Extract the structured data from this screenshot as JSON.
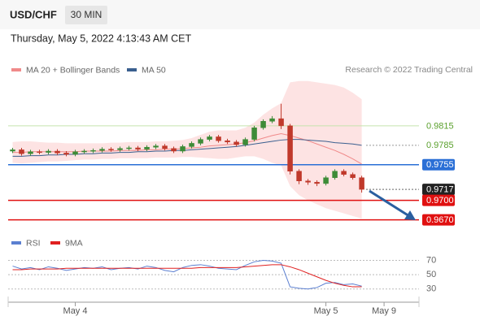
{
  "chart_data": {
    "type": "candlestick",
    "title": "USD/CHF",
    "timeframe": "30 MIN",
    "subtitle": "Thursday, May 5, 2022 4:13:43 AM CET",
    "source": "Research © 2022 Trading Central",
    "up_color": "#3d8b37",
    "down_color": "#c0392b",
    "open": [
      0.9776,
      0.9778,
      0.9772,
      0.9775,
      0.9774,
      0.9776,
      0.9773,
      0.9771,
      0.9775,
      0.9776,
      0.9777,
      0.9779,
      0.9778,
      0.978,
      0.9781,
      0.9779,
      0.9782,
      0.9784,
      0.978,
      0.9776,
      0.9783,
      0.9788,
      0.9794,
      0.9798,
      0.9792,
      0.979,
      0.9786,
      0.9794,
      0.9812,
      0.9822,
      0.9826,
      0.9815,
      0.9745,
      0.973,
      0.9728,
      0.9726,
      0.9735,
      0.9745,
      0.974,
      0.9735
    ],
    "high": [
      0.9781,
      0.9781,
      0.9778,
      0.9778,
      0.9779,
      0.9779,
      0.9776,
      0.9778,
      0.9779,
      0.978,
      0.9782,
      0.9782,
      0.9783,
      0.9784,
      0.9784,
      0.9785,
      0.9787,
      0.9787,
      0.9783,
      0.9786,
      0.9791,
      0.9797,
      0.9801,
      0.9801,
      0.9795,
      0.9793,
      0.9797,
      0.9815,
      0.9825,
      0.983,
      0.9849,
      0.9818,
      0.9748,
      0.9733,
      0.9731,
      0.9738,
      0.9748,
      0.9748,
      0.9743,
      0.9738
    ],
    "low": [
      0.9773,
      0.9769,
      0.9769,
      0.9771,
      0.9771,
      0.977,
      0.9768,
      0.9768,
      0.9772,
      0.9773,
      0.9774,
      0.9775,
      0.9775,
      0.9777,
      0.9776,
      0.9776,
      0.9779,
      0.9777,
      0.9773,
      0.9773,
      0.978,
      0.9785,
      0.9791,
      0.9789,
      0.9787,
      0.9783,
      0.9783,
      0.9791,
      0.9809,
      0.9819,
      0.981,
      0.974,
      0.9725,
      0.9724,
      0.9722,
      0.9723,
      0.9732,
      0.9737,
      0.9732,
      0.9712
    ],
    "close": [
      0.9778,
      0.9772,
      0.9775,
      0.9774,
      0.9776,
      0.9773,
      0.9771,
      0.9775,
      0.9776,
      0.9777,
      0.9779,
      0.9778,
      0.978,
      0.9781,
      0.9779,
      0.9782,
      0.9784,
      0.978,
      0.9776,
      0.9783,
      0.9788,
      0.9794,
      0.9798,
      0.9792,
      0.979,
      0.9786,
      0.9794,
      0.9812,
      0.9822,
      0.9826,
      0.9815,
      0.9745,
      0.973,
      0.9728,
      0.9726,
      0.9735,
      0.9745,
      0.974,
      0.9735,
      0.9717
    ],
    "series": [
      {
        "name": "MA 20 + Bollinger Bands",
        "color": "#f08a8a",
        "band_color": "#fde3e3",
        "values": [
          0.9774,
          0.9774,
          0.9775,
          0.9775,
          0.9775,
          0.9775,
          0.9775,
          0.9775,
          0.9776,
          0.9776,
          0.9776,
          0.9776,
          0.9777,
          0.9777,
          0.9777,
          0.9778,
          0.9778,
          0.9779,
          0.9779,
          0.978,
          0.9781,
          0.9782,
          0.9784,
          0.9785,
          0.9786,
          0.9787,
          0.9789,
          0.9792,
          0.9796,
          0.98,
          0.9803,
          0.98,
          0.9796,
          0.9792,
          0.9787,
          0.9782,
          0.9777,
          0.9771,
          0.9764,
          0.9756
        ],
        "upper": [
          0.979,
          0.9791,
          0.9791,
          0.979,
          0.9789,
          0.9789,
          0.9788,
          0.9788,
          0.9788,
          0.9788,
          0.9788,
          0.9789,
          0.9789,
          0.979,
          0.979,
          0.979,
          0.9791,
          0.9791,
          0.9792,
          0.9793,
          0.9796,
          0.9801,
          0.9806,
          0.9808,
          0.9808,
          0.9808,
          0.9812,
          0.982,
          0.9832,
          0.9842,
          0.985,
          0.9882,
          0.9884,
          0.9884,
          0.9882,
          0.988,
          0.9878,
          0.9874,
          0.9866,
          0.9856
        ],
        "lower": [
          0.9758,
          0.9757,
          0.9758,
          0.9759,
          0.976,
          0.976,
          0.9761,
          0.9762,
          0.9763,
          0.9763,
          0.9764,
          0.9764,
          0.9765,
          0.9765,
          0.9765,
          0.9765,
          0.9766,
          0.9766,
          0.9766,
          0.9767,
          0.9767,
          0.9766,
          0.9765,
          0.9764,
          0.9764,
          0.9766,
          0.9768,
          0.9768,
          0.9764,
          0.9758,
          0.9754,
          0.9722,
          0.9708,
          0.97,
          0.9694,
          0.9688,
          0.9684,
          0.968,
          0.9676,
          0.9672
        ]
      },
      {
        "name": "MA 50",
        "color": "#3a5f8f",
        "values": [
          0.9768,
          0.9768,
          0.9769,
          0.9769,
          0.977,
          0.977,
          0.9771,
          0.9771,
          0.9772,
          0.9772,
          0.9773,
          0.9773,
          0.9774,
          0.9774,
          0.9775,
          0.9775,
          0.9776,
          0.9776,
          0.9777,
          0.9777,
          0.9778,
          0.9779,
          0.978,
          0.9781,
          0.9782,
          0.9783,
          0.9785,
          0.9787,
          0.9789,
          0.9791,
          0.9793,
          0.9794,
          0.9794,
          0.9793,
          0.9792,
          0.9791,
          0.9789,
          0.9788,
          0.9787,
          0.9785
        ]
      }
    ],
    "levels": [
      {
        "value": 0.9815,
        "color": "#5aa02c",
        "line_color": "#c5e3ad",
        "style": "solid",
        "boxed": false
      },
      {
        "value": 0.9785,
        "color": "#5aa02c",
        "line_color": "#999999",
        "style": "dotted",
        "boxed": false
      },
      {
        "value": 0.9755,
        "color": "#2a6fd6",
        "line_color": "#2a6fd6",
        "style": "solid",
        "boxed": true
      },
      {
        "value": 0.9717,
        "color": "#222222",
        "line_color": "#666666",
        "style": "dotted",
        "boxed": true
      },
      {
        "value": 0.97,
        "label": "0.9700",
        "color": "#e01010",
        "line_color": "#e01010",
        "style": "solid",
        "boxed": true
      },
      {
        "value": 0.967,
        "label": "0.9670",
        "color": "#e01010",
        "line_color": "#e01010",
        "style": "solid",
        "boxed": true
      }
    ],
    "ylim": [
      0.9652,
      0.989
    ],
    "xlim": [
      -0.5,
      45.4
    ],
    "xticks": [
      {
        "value": 7,
        "label": "May 4"
      },
      {
        "value": 35,
        "label": "May 5"
      },
      {
        "value": 41.5,
        "label": "May 9"
      }
    ],
    "rsi": {
      "ylim": [
        16,
        82
      ],
      "yticks": [
        70,
        50,
        30
      ],
      "series": [
        {
          "name": "RSI",
          "color": "#5b7fd1",
          "values": [
            62,
            58,
            60,
            57,
            61,
            59,
            56,
            58,
            60,
            59,
            61,
            57,
            59,
            60,
            58,
            62,
            60,
            56,
            54,
            60,
            63,
            64,
            62,
            59,
            58,
            57,
            63,
            68,
            70,
            69,
            66,
            33,
            31,
            30,
            32,
            38,
            39,
            36,
            37,
            34
          ]
        },
        {
          "name": "9MA",
          "color": "#e02020",
          "values": [
            57,
            57,
            58,
            58,
            58,
            58,
            59,
            59,
            59,
            59,
            59,
            59,
            59,
            59,
            59,
            59,
            59,
            59,
            59,
            59,
            59,
            60,
            60,
            60,
            60,
            60,
            61,
            62,
            63,
            64,
            64,
            61,
            57,
            52,
            47,
            42,
            38,
            35,
            33,
            33
          ]
        }
      ]
    }
  }
}
